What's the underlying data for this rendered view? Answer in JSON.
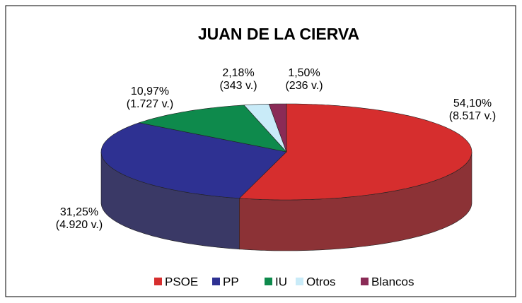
{
  "chart_data": {
    "type": "pie3d",
    "title": "JUAN DE LA CIERVA",
    "categories": [
      "PSOE",
      "PP",
      "IU",
      "Otros",
      "Blancos"
    ],
    "values": [
      54.1,
      31.25,
      10.97,
      2.18,
      1.5
    ],
    "value_labels": [
      "54,10%",
      "31,25%",
      "10,97%",
      "2,18%",
      "1,50%"
    ],
    "votes": [
      8517,
      4920,
      1727,
      343,
      236
    ],
    "vote_labels": [
      "(8.517 v.)",
      "(4.920 v.)",
      "(1.727 v.)",
      "(343 v.)",
      "(236 v.)"
    ],
    "colors": [
      "#d62e2e",
      "#2e3192",
      "#0e8a4c",
      "#c9ebf8",
      "#8a2b56"
    ],
    "side_colors": [
      "#8c3236",
      "#3a3966",
      "#0a5a32",
      "#8fa9b3",
      "#5a1c38"
    ],
    "legend": "bottom"
  }
}
